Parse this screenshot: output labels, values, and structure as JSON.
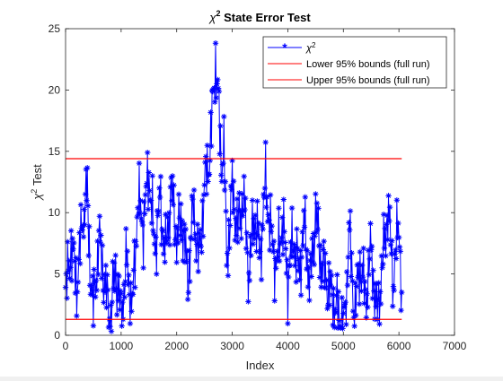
{
  "chart_data": {
    "type": "line",
    "title_symbol": "χ",
    "title_sup": "2",
    "title_rest": " State Error Test",
    "xlabel": "Index",
    "ylabel_symbol": "χ",
    "ylabel_sup": "2",
    "ylabel_rest": " Test",
    "xlim": [
      0,
      7000
    ],
    "ylim": [
      0,
      25
    ],
    "xticks": [
      0,
      1000,
      2000,
      3000,
      4000,
      5000,
      6000,
      7000
    ],
    "yticks": [
      0,
      5,
      10,
      15,
      20,
      25
    ],
    "grid": false,
    "legend_position": "top-right",
    "series": [
      {
        "name": "χ²",
        "name_symbol": "χ",
        "name_sup": "2",
        "color": "#0000ff",
        "marker": "asterisk",
        "x": [
          0,
          100,
          200,
          300,
          380,
          450,
          500,
          600,
          700,
          800,
          900,
          1000,
          1100,
          1200,
          1300,
          1400,
          1500,
          1600,
          1700,
          1800,
          1900,
          2000,
          2100,
          2200,
          2300,
          2400,
          2500,
          2600,
          2700,
          2750,
          2800,
          2850,
          2900,
          3000,
          3100,
          3200,
          3300,
          3400,
          3500,
          3600,
          3700,
          3800,
          3900,
          4000,
          4100,
          4200,
          4300,
          4400,
          4500,
          4600,
          4700,
          4800,
          4900,
          5000,
          5050,
          5100,
          5200,
          5300,
          5400,
          5500,
          5600,
          5700,
          5800,
          5900,
          6000,
          6050
        ],
        "y": [
          3.0,
          7.5,
          4.0,
          9.0,
          12.0,
          5.0,
          2.0,
          8.0,
          4.5,
          1.0,
          5.5,
          1.5,
          6.0,
          2.0,
          11.0,
          9.0,
          13.5,
          7.0,
          11.0,
          6.5,
          12.0,
          8.0,
          9.5,
          4.5,
          10.5,
          6.0,
          12.0,
          15.0,
          22.5,
          19.0,
          14.0,
          15.5,
          6.0,
          12.0,
          8.5,
          11.5,
          5.0,
          10.0,
          6.5,
          12.5,
          8.0,
          5.5,
          9.5,
          4.5,
          8.0,
          5.0,
          9.0,
          4.0,
          10.0,
          6.0,
          4.5,
          3.0,
          2.0,
          0.5,
          2.5,
          9.0,
          1.5,
          6.0,
          3.0,
          7.0,
          1.5,
          5.5,
          10.5,
          4.5,
          9.5,
          3.5
        ]
      },
      {
        "name": "Lower 95% bounds (full run)",
        "color": "#ff0000",
        "marker": "none",
        "x": [
          0,
          6050
        ],
        "y": [
          1.3,
          1.3
        ]
      },
      {
        "name": "Upper 95% bounds (full run)",
        "color": "#ff0000",
        "marker": "none",
        "x": [
          0,
          6050
        ],
        "y": [
          14.4,
          14.4
        ]
      }
    ]
  }
}
